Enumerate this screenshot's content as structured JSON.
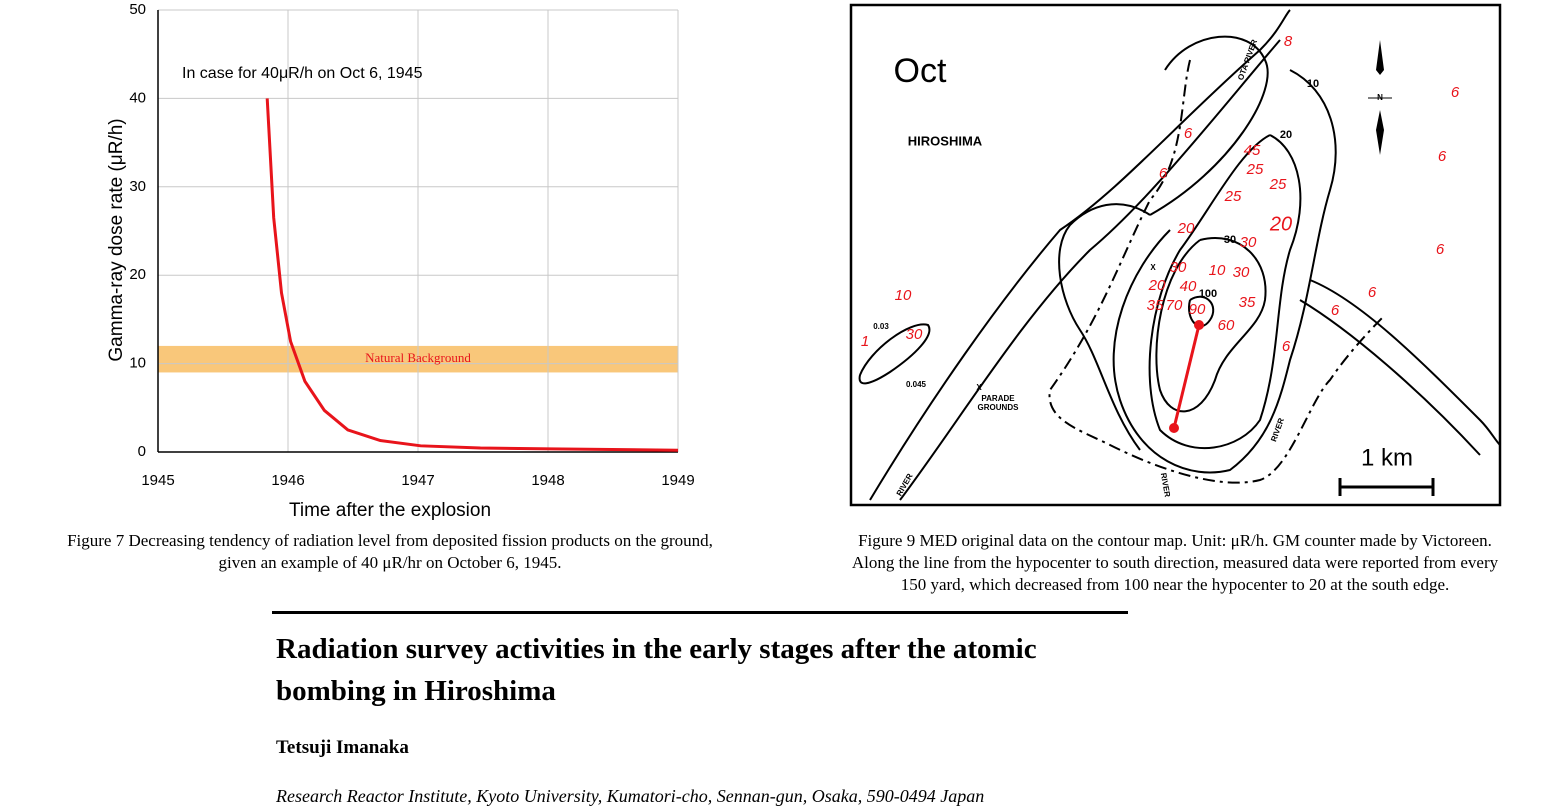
{
  "chart_data": {
    "type": "line",
    "annotation": "In case for 40μR/h on Oct 6, 1945",
    "x_label": "Time after the explosion",
    "y_label": "Gamma-ray dose rate (μR/h)",
    "x": [
      1945.84,
      1945.89,
      1945.95,
      1946.02,
      1946.13,
      1946.28,
      1946.46,
      1946.71,
      1947.02,
      1947.48,
      1948.02,
      1949.0
    ],
    "series": [
      {
        "name": "Dose rate",
        "color": "#e8141b",
        "values": [
          40,
          26.5,
          18,
          12.5,
          8,
          4.7,
          2.5,
          1.3,
          0.7,
          0.45,
          0.35,
          0.2
        ]
      }
    ],
    "band": {
      "from": 9,
      "to": 12,
      "label": "Natural Background",
      "color": "#f9c77a"
    },
    "xlim": [
      1945,
      1949
    ],
    "xticks": [
      1945,
      1946,
      1947,
      1948,
      1949
    ],
    "ylim": [
      0,
      50
    ],
    "yticks": [
      0,
      10,
      20,
      30,
      40,
      50
    ],
    "grid": true
  },
  "figure7_caption": [
    "Figure 7 Decreasing tendency of radiation level from deposited fission products on the ground,",
    "given an example of 40 μR/hr on October 6, 1945."
  ],
  "map": {
    "title": "Oct",
    "place": "HIROSHIMA",
    "scale": "1 km",
    "readings": [
      "8",
      "6",
      "6",
      "6",
      "45",
      "25",
      "25",
      "6",
      "25",
      "20",
      "20",
      "30",
      "6",
      "30",
      "10",
      "30",
      "20",
      "40",
      "10",
      "6",
      "35",
      "70",
      "90",
      "35",
      "6",
      "30",
      "1",
      "60",
      "6"
    ],
    "contour_labels": [
      "10",
      "20",
      "30",
      "100",
      "0.03",
      "0.045"
    ],
    "features": [
      "OTA RIVER",
      "RIVER",
      "RIVER",
      "RIVER",
      "PARADE",
      "GROUNDS",
      "X",
      "X",
      "N"
    ]
  },
  "figure9_caption": [
    "Figure 9   MED original data on the contour map. Unit: μR/h. GM counter made by Victoreen.",
    "Along the line from the hypocenter to south direction, measured data were reported from every",
    "150 yard, which decreased from 100 near the hypocenter to 20 at the south edge."
  ],
  "article": {
    "title": [
      "Radiation survey activities in the early stages after the atomic",
      "bombing in Hiroshima"
    ],
    "author": "Tetsuji Imanaka",
    "affiliation": "Research Reactor Institute, Kyoto University, Kumatori-cho, Sennan-gun, Osaka, 590-0494 Japan"
  }
}
